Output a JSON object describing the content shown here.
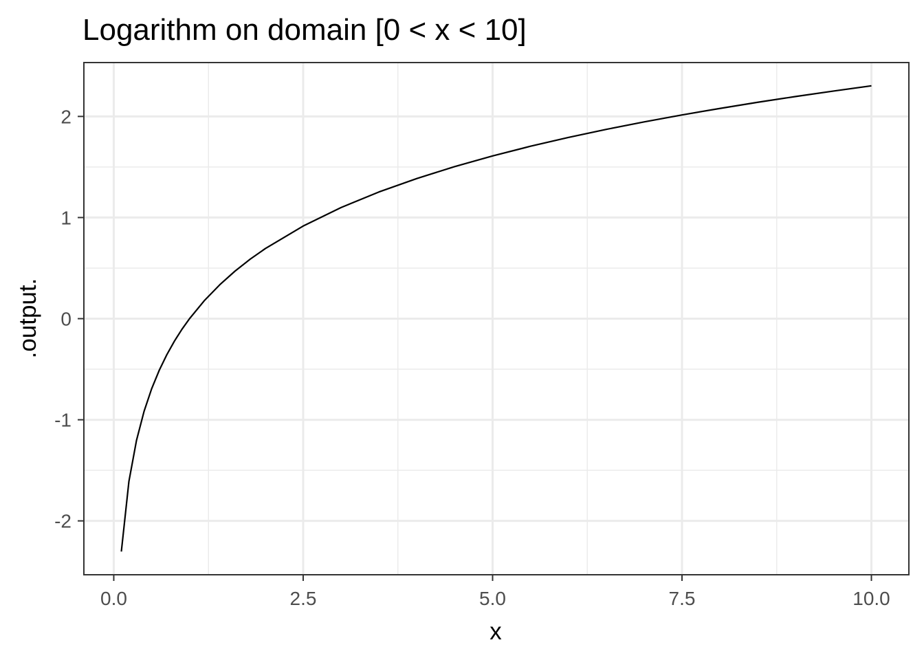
{
  "chart_data": {
    "type": "line",
    "title": "Logarithm on domain [0 < x < 10]",
    "xlabel": "x",
    "ylabel": ".output.",
    "xlim": [
      -0.3945,
      10.4945
    ],
    "ylim": [
      -2.5328,
      2.5328
    ],
    "x_ticks": [
      0,
      2.5,
      5,
      7.5,
      10
    ],
    "x_tick_labels": [
      "0.0",
      "2.5",
      "5.0",
      "7.5",
      "10.0"
    ],
    "x_minor_ticks": [
      1.25,
      3.75,
      6.25,
      8.75
    ],
    "y_ticks": [
      -2,
      -1,
      0,
      1,
      2
    ],
    "y_tick_labels": [
      "-2",
      "-1",
      "0",
      "1",
      "2"
    ],
    "y_minor_ticks": [
      -1.5,
      -0.5,
      0.5,
      1.5
    ],
    "grid": true,
    "legend": "none",
    "series": [
      {
        "function": "log",
        "color": "#000000",
        "x": [
          0.1,
          0.2,
          0.3,
          0.4,
          0.5,
          0.6,
          0.7,
          0.8,
          0.9,
          1.0,
          1.2,
          1.4,
          1.6,
          1.8,
          2.0,
          2.5,
          3.0,
          3.5,
          4.0,
          4.5,
          5.0,
          5.5,
          6.0,
          6.5,
          7.0,
          7.5,
          8.0,
          8.5,
          9.0,
          9.5,
          10.0
        ],
        "y": [
          -2.303,
          -1.609,
          -1.204,
          -0.916,
          -0.693,
          -0.511,
          -0.357,
          -0.223,
          -0.105,
          0.0,
          0.182,
          0.336,
          0.47,
          0.588,
          0.693,
          0.916,
          1.099,
          1.253,
          1.386,
          1.504,
          1.609,
          1.705,
          1.792,
          1.872,
          1.946,
          2.015,
          2.079,
          2.14,
          2.197,
          2.251,
          2.303
        ]
      }
    ]
  },
  "colors": {
    "panel_border": "#333333",
    "grid_major": "#ebebeb",
    "grid_minor": "#ebebeb",
    "tick_text": "#4d4d4d",
    "line": "#000000"
  }
}
